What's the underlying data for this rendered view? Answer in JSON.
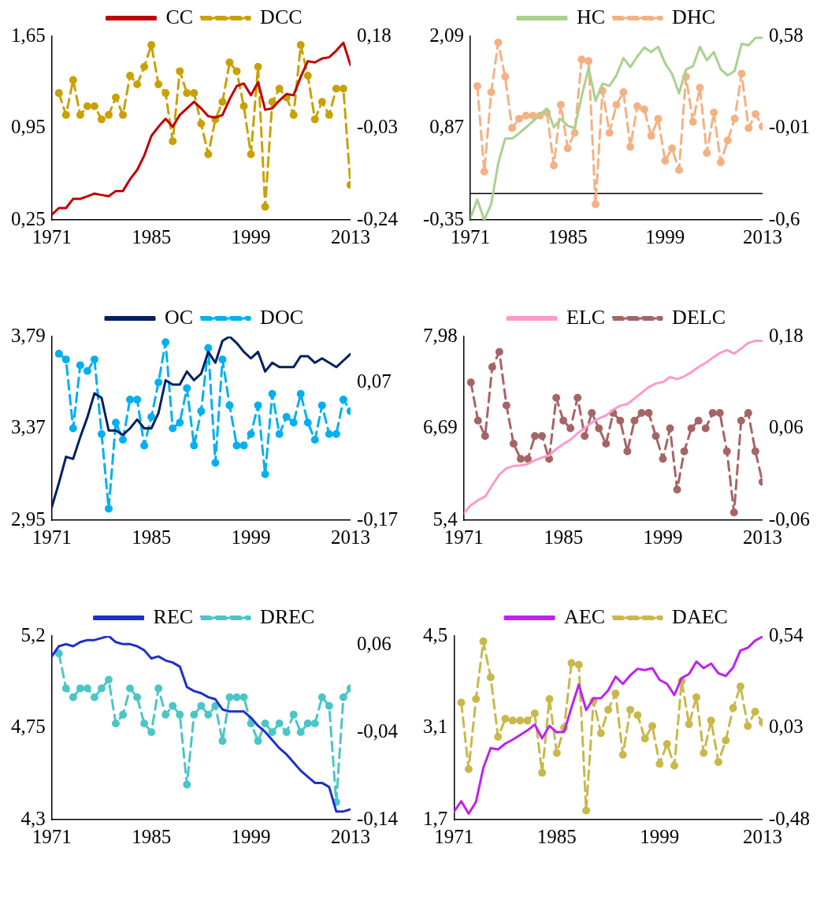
{
  "chart_data": [
    {
      "type": "line",
      "legend": "top",
      "x": [
        1971,
        1972,
        1973,
        1974,
        1975,
        1976,
        1977,
        1978,
        1979,
        1980,
        1981,
        1982,
        1983,
        1984,
        1985,
        1986,
        1987,
        1988,
        1989,
        1990,
        1991,
        1992,
        1993,
        1994,
        1995,
        1996,
        1997,
        1998,
        1999,
        2000,
        2001,
        2002,
        2003,
        2004,
        2005,
        2006,
        2007,
        2008,
        2009,
        2010,
        2011,
        2012,
        2013
      ],
      "xlim": [
        1971,
        2013
      ],
      "xticks": [
        1971,
        1985,
        1999,
        2013
      ],
      "ylim": [
        0.25,
        1.65
      ],
      "yticks": [
        {
          "value": 0.25,
          "label": "0,25"
        },
        {
          "value": 0.95,
          "label": "0,95"
        },
        {
          "value": 1.65,
          "label": "1,65"
        }
      ],
      "y2lim": [
        -0.24,
        0.18
      ],
      "y2ticks": [
        {
          "value": -0.24,
          "label": "-0,24"
        },
        {
          "value": -0.03,
          "label": "-0,03"
        },
        {
          "value": 0.18,
          "label": "0,18"
        }
      ],
      "series": [
        {
          "name": "CC",
          "color": "#c00000",
          "line_style": "solid",
          "marker": "none",
          "values": [
            0.29,
            0.34,
            0.34,
            0.41,
            0.41,
            0.43,
            0.45,
            0.44,
            0.43,
            0.47,
            0.47,
            0.56,
            0.63,
            0.74,
            0.89,
            0.96,
            1.02,
            0.96,
            1.05,
            1.1,
            1.15,
            1.1,
            1.04,
            1.03,
            1.05,
            1.17,
            1.27,
            1.29,
            1.2,
            1.3,
            1.09,
            1.1,
            1.16,
            1.21,
            1.2,
            1.34,
            1.46,
            1.45,
            1.48,
            1.49,
            1.54,
            1.6,
            1.43
          ]
        },
        {
          "name": "DCC",
          "color": "#c9a100",
          "axis": "y2",
          "line_style": "dashed",
          "marker": "circle",
          "values": [
            null,
            0.05,
            0,
            0.08,
            0,
            0.02,
            0.02,
            -0.01,
            0,
            0.04,
            0,
            0.09,
            0.07,
            0.11,
            0.16,
            0.07,
            0.05,
            -0.06,
            0.1,
            0.05,
            0.05,
            -0.02,
            -0.09,
            -0.01,
            0.03,
            0.12,
            0.1,
            0.02,
            -0.09,
            0.11,
            -0.21,
            0.03,
            0.06,
            0.04,
            0,
            0.16,
            0.09,
            -0.01,
            0.03,
            0,
            0.06,
            0.06,
            -0.16
          ]
        }
      ]
    },
    {
      "type": "line",
      "legend": "top",
      "x": [
        1971,
        1972,
        1973,
        1974,
        1975,
        1976,
        1977,
        1978,
        1979,
        1980,
        1981,
        1982,
        1983,
        1984,
        1985,
        1986,
        1987,
        1988,
        1989,
        1990,
        1991,
        1992,
        1993,
        1994,
        1995,
        1996,
        1997,
        1998,
        1999,
        2000,
        2001,
        2002,
        2003,
        2004,
        2005,
        2006,
        2007,
        2008,
        2009,
        2010,
        2011,
        2012,
        2013
      ],
      "xlim": [
        1971,
        2013
      ],
      "xticks": [
        1971,
        1985,
        1999,
        2013
      ],
      "ylim": [
        -0.35,
        2.09
      ],
      "yticks": [
        {
          "value": -0.35,
          "label": "-0,35"
        },
        {
          "value": 0.87,
          "label": "0,87"
        },
        {
          "value": 2.09,
          "label": "2,09"
        }
      ],
      "y2lim": [
        -0.6,
        0.58
      ],
      "y2ticks": [
        {
          "value": -0.6,
          "label": "-0,6"
        },
        {
          "value": -0.01,
          "label": "-0,01"
        },
        {
          "value": 0.58,
          "label": "0,58"
        }
      ],
      "ref_lines": [
        {
          "axis": "y",
          "value": 0,
          "color": "#000000"
        }
      ],
      "series": [
        {
          "name": "HC",
          "color": "#a9d18e",
          "line_style": "solid",
          "marker": "none",
          "values": [
            -0.33,
            -0.08,
            -0.35,
            -0.14,
            0.4,
            0.73,
            0.73,
            0.8,
            0.88,
            0.96,
            1.05,
            1.13,
            0.88,
            0.99,
            0.9,
            0.87,
            1.29,
            1.67,
            1.23,
            1.46,
            1.43,
            1.57,
            1.8,
            1.68,
            1.82,
            1.94,
            1.88,
            1.95,
            1.73,
            1.59,
            1.33,
            1.65,
            1.69,
            1.95,
            1.77,
            1.88,
            1.65,
            1.57,
            1.63,
            1.99,
            1.97,
            2.07,
            2.07
          ]
        },
        {
          "name": "DHC",
          "color": "#f4b183",
          "axis": "y2",
          "line_style": "dashed",
          "marker": "circle",
          "values": [
            null,
            0.26,
            -0.29,
            0.22,
            0.54,
            0.32,
            -0.01,
            0.05,
            0.07,
            0.07,
            0.07,
            0.09,
            -0.25,
            0.14,
            -0.14,
            -0.04,
            0.43,
            0.42,
            -0.5,
            0.23,
            -0.04,
            0.14,
            0.22,
            -0.13,
            0.13,
            0.11,
            -0.06,
            0.05,
            -0.22,
            -0.14,
            -0.28,
            0.32,
            0.03,
            0.25,
            -0.17,
            0.09,
            -0.23,
            -0.09,
            0.05,
            0.34,
            -0.01,
            0.08,
            0
          ]
        }
      ]
    },
    {
      "type": "line",
      "legend": "top",
      "x": [
        1971,
        1972,
        1973,
        1974,
        1975,
        1976,
        1977,
        1978,
        1979,
        1980,
        1981,
        1982,
        1983,
        1984,
        1985,
        1986,
        1987,
        1988,
        1989,
        1990,
        1991,
        1992,
        1993,
        1994,
        1995,
        1996,
        1997,
        1998,
        1999,
        2000,
        2001,
        2002,
        2003,
        2004,
        2005,
        2006,
        2007,
        2008,
        2009,
        2010,
        2011,
        2012,
        2013
      ],
      "xlim": [
        1971,
        2013
      ],
      "xticks": [
        1971,
        1985,
        1999,
        2013
      ],
      "ylim": [
        2.95,
        3.79
      ],
      "yticks": [
        {
          "value": 2.95,
          "label": "2,95"
        },
        {
          "value": 3.37,
          "label": "3,37"
        },
        {
          "value": 3.79,
          "label": "3,79"
        }
      ],
      "y2lim": [
        -0.17,
        0.15
      ],
      "y2ticks": [
        {
          "value": -0.17,
          "label": "-0,17"
        },
        {
          "value": 0.07,
          "label": "0,07"
        }
      ],
      "series": [
        {
          "name": "OC",
          "color": "#002060",
          "line_style": "solid",
          "marker": "none",
          "values": [
            3.01,
            3.12,
            3.24,
            3.23,
            3.33,
            3.42,
            3.53,
            3.51,
            3.36,
            3.36,
            3.34,
            3.37,
            3.41,
            3.37,
            3.37,
            3.44,
            3.59,
            3.57,
            3.57,
            3.63,
            3.59,
            3.62,
            3.72,
            3.67,
            3.77,
            3.79,
            3.76,
            3.72,
            3.69,
            3.72,
            3.63,
            3.67,
            3.65,
            3.65,
            3.65,
            3.7,
            3.7,
            3.67,
            3.69,
            3.67,
            3.65,
            3.68,
            3.71
          ]
        },
        {
          "name": "DOC",
          "color": "#00b0f0",
          "axis": "y2",
          "line_style": "dashed",
          "marker": "circle",
          "values": [
            null,
            0.12,
            0.11,
            -0.01,
            0.1,
            0.09,
            0.11,
            -0.02,
            -0.15,
            0,
            -0.03,
            0.04,
            0.04,
            -0.04,
            0.01,
            0.07,
            0.14,
            -0.01,
            0,
            0.06,
            -0.04,
            0.02,
            0.13,
            -0.07,
            0.11,
            0.03,
            -0.04,
            -0.04,
            -0.02,
            0.03,
            -0.09,
            0.05,
            -0.02,
            0.01,
            0,
            0.05,
            0,
            -0.03,
            0.03,
            -0.02,
            -0.02,
            0.04,
            0.02
          ]
        }
      ]
    },
    {
      "type": "line",
      "legend": "top",
      "x": [
        1971,
        1972,
        1973,
        1974,
        1975,
        1976,
        1977,
        1978,
        1979,
        1980,
        1981,
        1982,
        1983,
        1984,
        1985,
        1986,
        1987,
        1988,
        1989,
        1990,
        1991,
        1992,
        1993,
        1994,
        1995,
        1996,
        1997,
        1998,
        1999,
        2000,
        2001,
        2002,
        2003,
        2004,
        2005,
        2006,
        2007,
        2008,
        2009,
        2010,
        2011,
        2012,
        2013
      ],
      "xlim": [
        1971,
        2013
      ],
      "xticks": [
        1971,
        1985,
        1999,
        2013
      ],
      "ylim": [
        5.4,
        7.98
      ],
      "yticks": [
        {
          "value": 5.4,
          "label": "5,4"
        },
        {
          "value": 6.69,
          "label": "6,69"
        },
        {
          "value": 7.98,
          "label": "7,98"
        }
      ],
      "y2lim": [
        -0.06,
        0.18
      ],
      "y2ticks": [
        {
          "value": -0.06,
          "label": "-0,06"
        },
        {
          "value": 0.06,
          "label": "0,06"
        },
        {
          "value": 0.18,
          "label": "0,18"
        }
      ],
      "series": [
        {
          "name": "ELC",
          "color": "#ff99cc",
          "line_style": "solid",
          "marker": "none",
          "values": [
            5.5,
            5.61,
            5.68,
            5.73,
            5.89,
            6.04,
            6.13,
            6.16,
            6.17,
            6.19,
            6.24,
            6.28,
            6.31,
            6.4,
            6.47,
            6.53,
            6.62,
            6.69,
            6.77,
            6.83,
            6.87,
            6.95,
            7.01,
            7.03,
            7.11,
            7.19,
            7.27,
            7.32,
            7.34,
            7.41,
            7.38,
            7.42,
            7.48,
            7.55,
            7.61,
            7.68,
            7.75,
            7.79,
            7.74,
            7.81,
            7.89,
            7.92,
            7.92
          ]
        },
        {
          "name": "DELC",
          "color": "#a66565",
          "axis": "y2",
          "line_style": "dashed",
          "marker": "circle",
          "values": [
            null,
            0.12,
            0.07,
            0.05,
            0.14,
            0.16,
            0.09,
            0.04,
            0.02,
            0.02,
            0.05,
            0.05,
            0.02,
            0.1,
            0.07,
            0.06,
            0.1,
            0.05,
            0.08,
            0.06,
            0.04,
            0.08,
            0.07,
            0.03,
            0.07,
            0.08,
            0.08,
            0.05,
            0.02,
            0.06,
            -0.02,
            0.03,
            0.06,
            0.07,
            0.06,
            0.08,
            0.08,
            0.03,
            -0.05,
            0.07,
            0.08,
            0.03,
            -0.01
          ]
        }
      ]
    },
    {
      "type": "line",
      "legend": "top",
      "x": [
        1971,
        1972,
        1973,
        1974,
        1975,
        1976,
        1977,
        1978,
        1979,
        1980,
        1981,
        1982,
        1983,
        1984,
        1985,
        1986,
        1987,
        1988,
        1989,
        1990,
        1991,
        1992,
        1993,
        1994,
        1995,
        1996,
        1997,
        1998,
        1999,
        2000,
        2001,
        2002,
        2003,
        2004,
        2005,
        2006,
        2007,
        2008,
        2009,
        2010,
        2011,
        2012,
        2013
      ],
      "xlim": [
        1971,
        2013
      ],
      "xticks": [
        1971,
        1985,
        1999,
        2013
      ],
      "ylim": [
        4.3,
        5.2
      ],
      "yticks": [
        {
          "value": 4.3,
          "label": "4,3"
        },
        {
          "value": 4.75,
          "label": "4,75"
        },
        {
          "value": 5.2,
          "label": "5,2"
        }
      ],
      "y2lim": [
        -0.14,
        0.07
      ],
      "y2ticks": [
        {
          "value": -0.14,
          "label": "-0,14"
        },
        {
          "value": -0.04,
          "label": "-0,04"
        },
        {
          "value": 0.06,
          "label": "0,06"
        }
      ],
      "series": [
        {
          "name": "REC",
          "color": "#1f2fcc",
          "line_style": "solid",
          "marker": "none",
          "values": [
            5.1,
            5.15,
            5.16,
            5.15,
            5.17,
            5.18,
            5.18,
            5.19,
            5.2,
            5.17,
            5.16,
            5.16,
            5.15,
            5.13,
            5.09,
            5.1,
            5.08,
            5.07,
            5.05,
            4.95,
            4.93,
            4.92,
            4.9,
            4.89,
            4.84,
            4.83,
            4.83,
            4.83,
            4.8,
            4.76,
            4.73,
            4.69,
            4.65,
            4.62,
            4.58,
            4.54,
            4.51,
            4.48,
            4.48,
            4.46,
            4.34,
            4.34,
            4.35
          ]
        },
        {
          "name": "DREC",
          "color": "#4bc6c6",
          "axis": "y2",
          "line_style": "dashed",
          "marker": "circle",
          "values": [
            null,
            0.05,
            0.01,
            0,
            0.01,
            0.01,
            0,
            0.01,
            0.02,
            -0.03,
            -0.02,
            0.01,
            0,
            -0.03,
            -0.04,
            0.01,
            -0.02,
            -0.01,
            -0.02,
            -0.1,
            -0.02,
            -0.01,
            -0.02,
            -0.01,
            -0.05,
            0,
            0,
            0,
            -0.03,
            -0.05,
            -0.03,
            -0.04,
            -0.03,
            -0.04,
            -0.02,
            -0.04,
            -0.03,
            -0.03,
            0,
            -0.01,
            -0.12,
            0,
            0.01
          ]
        }
      ]
    },
    {
      "type": "line",
      "legend": "top",
      "x": [
        1971,
        1972,
        1973,
        1974,
        1975,
        1976,
        1977,
        1978,
        1979,
        1980,
        1981,
        1982,
        1983,
        1984,
        1985,
        1986,
        1987,
        1988,
        1989,
        1990,
        1991,
        1992,
        1993,
        1994,
        1995,
        1996,
        1997,
        1998,
        1999,
        2000,
        2001,
        2002,
        2003,
        2004,
        2005,
        2006,
        2007,
        2008,
        2009,
        2010,
        2011,
        2012,
        2013
      ],
      "xlim": [
        1971,
        2013
      ],
      "xticks": [
        1971,
        1985,
        1999,
        2013
      ],
      "ylim": [
        1.7,
        4.5
      ],
      "yticks": [
        {
          "value": 1.7,
          "label": "1,7"
        },
        {
          "value": 3.1,
          "label": "3,1"
        },
        {
          "value": 4.5,
          "label": "4,5"
        }
      ],
      "y2lim": [
        -0.48,
        0.54
      ],
      "y2ticks": [
        {
          "value": -0.48,
          "label": "-0,48"
        },
        {
          "value": 0.03,
          "label": "0,03"
        },
        {
          "value": 0.54,
          "label": "0,54"
        }
      ],
      "series": [
        {
          "name": "AEC",
          "color": "#c020f0",
          "line_style": "solid",
          "marker": "none",
          "values": [
            1.82,
            1.98,
            1.79,
            1.97,
            2.49,
            2.79,
            2.77,
            2.86,
            2.92,
            2.99,
            3.06,
            3.15,
            2.94,
            3.13,
            3.03,
            3.04,
            3.41,
            3.76,
            3.37,
            3.55,
            3.55,
            3.67,
            3.88,
            3.77,
            3.9,
            4.0,
            3.98,
            4.01,
            3.83,
            3.77,
            3.6,
            3.86,
            3.92,
            4.11,
            4.01,
            4.08,
            3.93,
            3.89,
            4.02,
            4.28,
            4.32,
            4.43,
            4.49
          ]
        },
        {
          "name": "DAEC",
          "color": "#c9b84a",
          "axis": "y2",
          "line_style": "dashed",
          "marker": "circle",
          "values": [
            null,
            0.17,
            -0.2,
            0.19,
            0.51,
            0.31,
            -0.02,
            0.08,
            0.07,
            0.07,
            0.07,
            0.11,
            -0.22,
            0.19,
            -0.11,
            0.03,
            0.39,
            0.38,
            -0.43,
            0.18,
            0,
            0.13,
            0.22,
            -0.12,
            0.13,
            0.1,
            -0.03,
            0.04,
            -0.17,
            -0.06,
            -0.18,
            0.29,
            0.05,
            0.2,
            -0.11,
            0.07,
            -0.16,
            -0.04,
            0.14,
            0.26,
            0.04,
            0.12,
            0.06
          ]
        }
      ]
    }
  ]
}
